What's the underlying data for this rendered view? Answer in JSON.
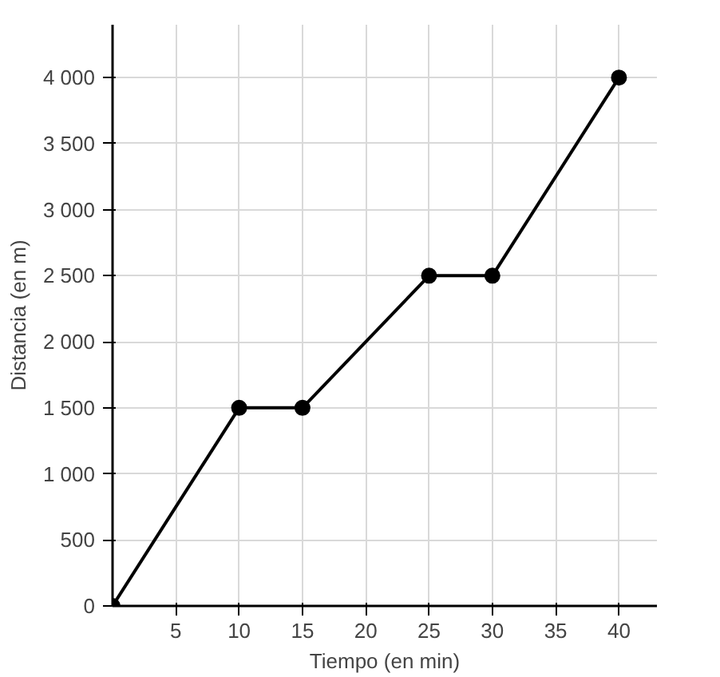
{
  "chart_data": {
    "type": "line",
    "xlabel": "Tiempo (en min)",
    "ylabel": "Distancia (en m)",
    "x": [
      0,
      10,
      15,
      25,
      30,
      40
    ],
    "series": [
      {
        "color": "#000000",
        "values": [
          0,
          1500,
          1500,
          2500,
          2500,
          4000
        ]
      }
    ],
    "xlim": [
      0,
      43
    ],
    "ylim": [
      0,
      4400
    ],
    "xticks": [
      5,
      10,
      15,
      20,
      25,
      30,
      35,
      40
    ],
    "yticks": [
      0,
      500,
      1000,
      1500,
      2000,
      2500,
      3000,
      3500,
      {
        "value": 4000,
        "label": "4 000"
      }
    ],
    "grid": true,
    "marker": "circle",
    "line_style": "solid"
  }
}
